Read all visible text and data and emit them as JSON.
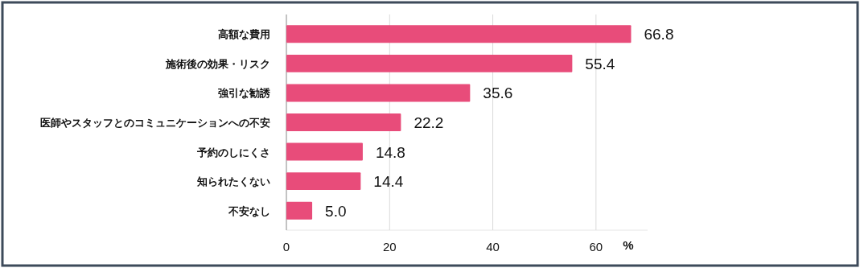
{
  "chart_data": {
    "type": "bar",
    "orientation": "horizontal",
    "xlabel": "%",
    "categories": [
      "高額な費用",
      "施術後の効果・リスク",
      "強引な勧誘",
      "医師やスタッフとのコミュニケーションへの不安",
      "予約のしにくさ",
      "知られたくない",
      "不安なし"
    ],
    "values": [
      66.8,
      55.4,
      35.6,
      22.2,
      14.8,
      14.4,
      5.0
    ],
    "value_labels": [
      "66.8",
      "55.4",
      "35.6",
      "22.2",
      "14.8",
      "14.4",
      "5.0"
    ],
    "color": "#e84c7a",
    "xlim": [
      0,
      70
    ],
    "xticks": [
      0,
      20,
      40,
      60
    ],
    "grid": "x"
  }
}
